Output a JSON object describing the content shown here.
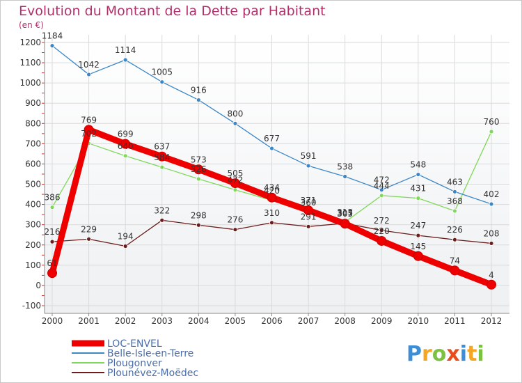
{
  "chart_data": {
    "type": "line",
    "title": "Evolution du Montant de la Dette par Habitant",
    "unit_label": "(en €)",
    "x": [
      "2000",
      "2001",
      "2002",
      "2003",
      "2004",
      "2005",
      "2006",
      "2007",
      "2008",
      "2009",
      "2010",
      "2011",
      "2012"
    ],
    "ylim": [
      -100,
      1200
    ],
    "y_ticks": [
      -100,
      0,
      100,
      200,
      300,
      400,
      500,
      600,
      700,
      800,
      900,
      1000,
      1100,
      1200
    ],
    "grid": true,
    "legend_position": "bottom-left",
    "series": [
      {
        "name": "LOC-ENVEL",
        "color": "#ee0000",
        "values": [
          61,
          769,
          699,
          637,
          573,
          505,
          434,
          371,
          305,
          220,
          145,
          74,
          4
        ]
      },
      {
        "name": "Belle-Isle-en-Terre",
        "color": "#3b87c8",
        "values": [
          1184,
          1042,
          1114,
          1005,
          916,
          800,
          677,
          591,
          538,
          472,
          548,
          463,
          402
        ]
      },
      {
        "name": "Plougonver",
        "color": "#80d85a",
        "values": [
          386,
          702,
          640,
          584,
          526,
          472,
          420,
          360,
          313,
          444,
          431,
          368,
          760
        ]
      },
      {
        "name": "Plounévez-Moëdec",
        "color": "#6b1c1c",
        "values": [
          216,
          229,
          194,
          322,
          298,
          276,
          310,
          291,
          307,
          272,
          247,
          226,
          208
        ]
      }
    ]
  },
  "logo": {
    "text": "Proxiti",
    "letters": [
      "P",
      "r",
      "o",
      "x",
      "i",
      "t",
      "i"
    ],
    "colors": [
      "#3c8ed8",
      "#f5a623",
      "#7cc242",
      "#e84e1b",
      "#3c8ed8",
      "#f5a623",
      "#7cc242"
    ]
  }
}
